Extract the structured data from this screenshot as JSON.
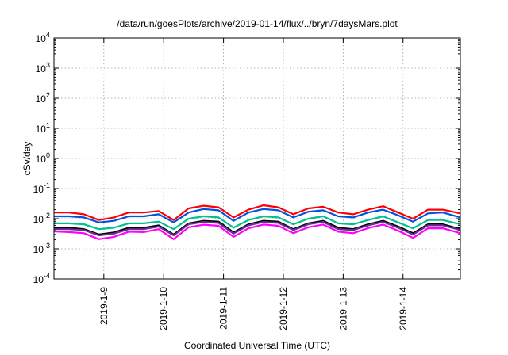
{
  "chart_data": {
    "type": "line",
    "title": "/data/run/goesPlots/archive/2019-01-14/flux/../bryn/7daysMars.plot",
    "xlabel": "Coordinated Universal Time (UTC)",
    "ylabel": "cSv/day",
    "y_scale": "log",
    "ylim": [
      0.0001,
      10000
    ],
    "y_ticks": [
      {
        "value": 0.0001,
        "base": "10",
        "exp": "-4"
      },
      {
        "value": 0.001,
        "base": "10",
        "exp": "-3"
      },
      {
        "value": 0.01,
        "base": "10",
        "exp": "-2"
      },
      {
        "value": 0.1,
        "base": "10",
        "exp": "-1"
      },
      {
        "value": 1,
        "base": "10",
        "exp": "0"
      },
      {
        "value": 10,
        "base": "10",
        "exp": "1"
      },
      {
        "value": 100,
        "base": "10",
        "exp": "2"
      },
      {
        "value": 1000,
        "base": "10",
        "exp": "3"
      },
      {
        "value": 10000,
        "base": "10",
        "exp": "4"
      }
    ],
    "x_range_days": [
      "2019-01-08 04:00",
      "2019-01-14 23:00"
    ],
    "x_tick_labels": [
      "2019-1-9",
      "2019-1-10",
      "2019-1-11",
      "2019-1-12",
      "2019-1-13",
      "2019-1-14"
    ],
    "grid": true,
    "x": [
      "2019-01-08 04:00",
      "2019-01-08 10:00",
      "2019-01-08 16:00",
      "2019-01-08 22:00",
      "2019-01-09 04:00",
      "2019-01-09 10:00",
      "2019-01-09 16:00",
      "2019-01-09 22:00",
      "2019-01-10 04:00",
      "2019-01-10 10:00",
      "2019-01-10 16:00",
      "2019-01-10 22:00",
      "2019-01-11 04:00",
      "2019-01-11 10:00",
      "2019-01-11 16:00",
      "2019-01-11 22:00",
      "2019-01-12 04:00",
      "2019-01-12 10:00",
      "2019-01-12 16:00",
      "2019-01-12 22:00",
      "2019-01-13 04:00",
      "2019-01-13 10:00",
      "2019-01-13 16:00",
      "2019-01-13 22:00",
      "2019-01-14 04:00",
      "2019-01-14 10:00",
      "2019-01-14 16:00",
      "2019-01-14 23:00"
    ],
    "series": [
      {
        "color": "#ff0000",
        "values": [
          0.016,
          0.016,
          0.014,
          0.009,
          0.011,
          0.016,
          0.016,
          0.018,
          0.009,
          0.022,
          0.027,
          0.024,
          0.011,
          0.02,
          0.028,
          0.024,
          0.014,
          0.022,
          0.025,
          0.016,
          0.014,
          0.02,
          0.026,
          0.016,
          0.01,
          0.02,
          0.02,
          0.015
        ]
      },
      {
        "color": "#0055dd",
        "values": [
          0.012,
          0.012,
          0.011,
          0.0075,
          0.0085,
          0.012,
          0.012,
          0.014,
          0.0075,
          0.016,
          0.021,
          0.019,
          0.0085,
          0.016,
          0.021,
          0.019,
          0.011,
          0.017,
          0.019,
          0.012,
          0.011,
          0.016,
          0.02,
          0.013,
          0.008,
          0.015,
          0.016,
          0.011
        ]
      },
      {
        "color": "#00c090",
        "values": [
          0.007,
          0.007,
          0.0065,
          0.0045,
          0.005,
          0.007,
          0.007,
          0.008,
          0.0045,
          0.01,
          0.012,
          0.011,
          0.005,
          0.009,
          0.012,
          0.011,
          0.0065,
          0.01,
          0.012,
          0.007,
          0.0065,
          0.009,
          0.012,
          0.0075,
          0.0048,
          0.009,
          0.009,
          0.0065
        ]
      },
      {
        "color": "#000000",
        "values": [
          0.005,
          0.005,
          0.0045,
          0.003,
          0.0035,
          0.005,
          0.005,
          0.006,
          0.003,
          0.007,
          0.0085,
          0.008,
          0.0035,
          0.0065,
          0.0085,
          0.008,
          0.0045,
          0.007,
          0.0085,
          0.005,
          0.0045,
          0.0065,
          0.0085,
          0.0055,
          0.0033,
          0.0065,
          0.0065,
          0.0045
        ]
      },
      {
        "color": "#6a2f8f",
        "values": [
          0.0045,
          0.0045,
          0.0042,
          0.0028,
          0.0032,
          0.0045,
          0.0045,
          0.0055,
          0.0028,
          0.0065,
          0.0078,
          0.0072,
          0.0032,
          0.006,
          0.0078,
          0.0072,
          0.0042,
          0.0065,
          0.0078,
          0.0045,
          0.0042,
          0.006,
          0.0078,
          0.005,
          0.003,
          0.006,
          0.006,
          0.0042
        ]
      },
      {
        "color": "#ff00ff",
        "values": [
          0.0038,
          0.0036,
          0.0033,
          0.0021,
          0.0025,
          0.0037,
          0.0036,
          0.0045,
          0.0021,
          0.0052,
          0.0063,
          0.0058,
          0.0025,
          0.0048,
          0.0064,
          0.0058,
          0.0033,
          0.0052,
          0.0064,
          0.0037,
          0.0033,
          0.0049,
          0.0064,
          0.004,
          0.0023,
          0.0048,
          0.0048,
          0.0033
        ]
      }
    ]
  }
}
